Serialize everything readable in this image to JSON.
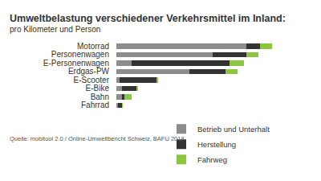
{
  "chart_data": {
    "type": "bar",
    "orientation": "horizontal",
    "stacked": true,
    "title": "Umweltbelastung verschiedener Verkehrsmittel im Inland:",
    "subtitle": "pro Kilometer und Person",
    "source": "Quelle: mobitool 2.0 / Online-Umweltbericht Schweiz, BAFU 2018",
    "categories": [
      "Motorrad",
      "Personenwagen",
      "E-Personenwagen",
      "Erdgas-PW",
      "E-Scooter",
      "E-Bike",
      "Bahn",
      "Fahrrad"
    ],
    "series": [
      {
        "name": "Betrieb und Unterhalt",
        "color": "#8c8c8c",
        "values": [
          164,
          122,
          19,
          92,
          4,
          7,
          7,
          2
        ]
      },
      {
        "name": "Herstellung",
        "color": "#333333",
        "values": [
          18,
          42,
          124,
          46,
          47,
          18,
          3,
          5
        ]
      },
      {
        "name": "Fahrweg",
        "color": "#8cc63f",
        "values": [
          15,
          16,
          18,
          15,
          2,
          2,
          9,
          1
        ]
      }
    ],
    "xlim": [
      0,
      200
    ],
    "xticks": [],
    "tick_labels": "y",
    "grid": false,
    "legend": "lower right"
  }
}
